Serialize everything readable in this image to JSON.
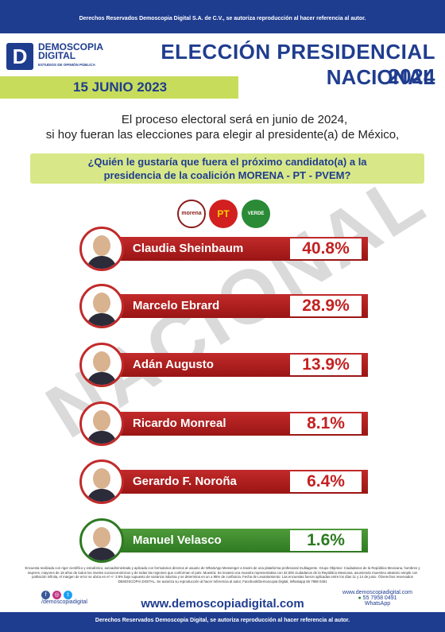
{
  "header": {
    "rights": "Derechos Reservados Demoscopia Digital S.A. de C.V., se autoriza reproducción al hacer referencia al autor.",
    "logo_name": "DEMOSCOPIA\nDIGITAL",
    "logo_sub": "ESTUDIOS DE OPINIÓN PÚBLICA",
    "title_line1": "ELECCIÓN PRESIDENCIAL 2024",
    "title_line2": "NACIONAL",
    "date": "15 JUNIO 2023"
  },
  "intro": {
    "line1": "El proceso electoral será en junio de 2024,",
    "line2": "si hoy fueran las elecciones para elegir al presidente(a) de México,"
  },
  "question": {
    "line1": "¿Quién le gustaría que fuera el próximo candidato(a) a la",
    "line2": "presidencia de la coalición MORENA - PT - PVEM?"
  },
  "parties": [
    {
      "name": "morena",
      "color": "#8a1c1c"
    },
    {
      "name": "PT",
      "color": "#d21f1f"
    },
    {
      "name": "VERDE",
      "color": "#2a8a36"
    }
  ],
  "candidates": [
    {
      "name": "Claudia Sheinbaum",
      "pct": "40.8%",
      "color": "red"
    },
    {
      "name": "Marcelo Ebrard",
      "pct": "28.9%",
      "color": "red"
    },
    {
      "name": "Adán Augusto",
      "pct": "13.9%",
      "color": "red"
    },
    {
      "name": "Ricardo Monreal",
      "pct": "8.1%",
      "color": "red"
    },
    {
      "name": "Gerardo F. Noroña",
      "pct": "6.4%",
      "color": "red"
    },
    {
      "name": "Manuel Velasco",
      "pct": "1.6%",
      "color": "green"
    }
  ],
  "watermark": "NACIONAL",
  "footer": {
    "note": "Encuesta realizada con rigor científico y estadístico, autoadministrada y aplicada con formularios directos al usuario de WhatsApp Messenger a través de una plataforma profesional multiagente. Grupo Objetivo: Ciudadanos de la República Mexicana, hombres y mujeres, mayores de 18 años de todos los niveles socioeconómicos y de todas las regiones que conforman el país. Muestra: Se levantó una muestra representativa con 32,000 ciudadanos de la República Mexicana, asumiendo muestreo aleatorio simple con población infinita, el margen de error se ubica en el +/- 3.8% bajo supuesto de varianza máxima y se determina en un ± 95% de confianza. Fecha de Levantamiento: Las encuestas fueron aplicadas entre los días 11 y 14 de junio. ©Derechos reservados DEMOSCOPIA DIGITAL. Se autoriza su reproducción al hacer referencia al autor, Facebook/Demoscopia Digital, Whatsapp 55 7958 0491",
    "social_handle": "/demoscopiadigital",
    "website": "www.demoscopiadigital.com",
    "contact_site": "www.demoscopiadigital.com",
    "phone": "55 7958 0491",
    "whatsapp": "WhatsApp",
    "rights": "Derechos Reservados Demoscopia Digital, se autoriza reproducción al hacer referencia al autor."
  }
}
